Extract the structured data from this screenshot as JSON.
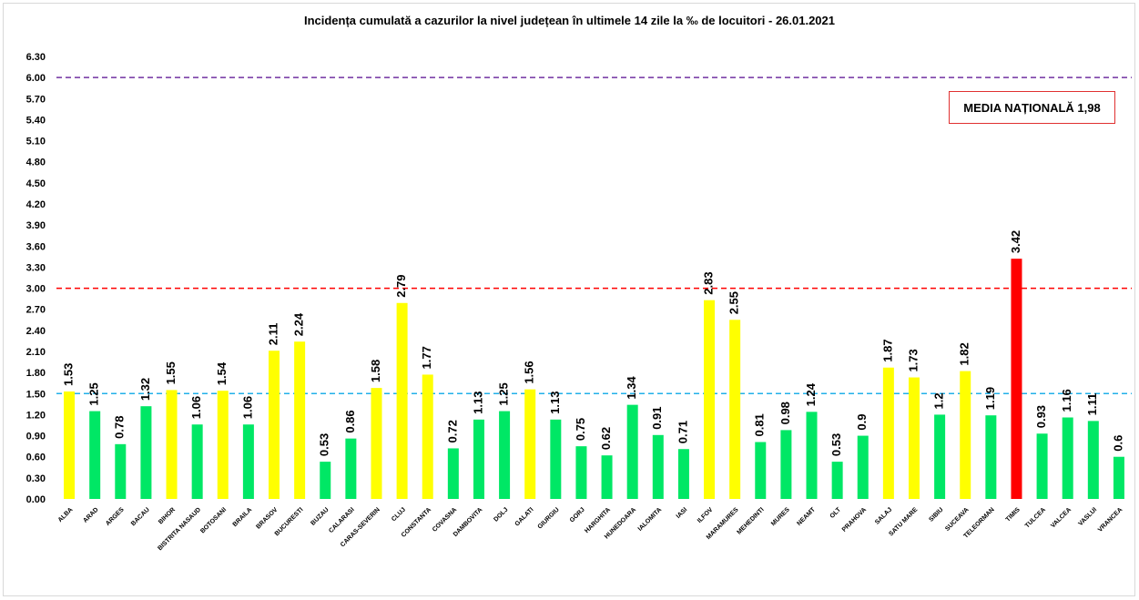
{
  "chart_data": {
    "type": "bar",
    "title": "Incidența cumulată a cazurilor la nivel județean în ultimele 14 zile la ‰ de locuitori - 26.01.2021",
    "annotation": "MEDIA NAȚIONALĂ 1,98",
    "categories": [
      "ALBA",
      "ARAD",
      "ARGES",
      "BACAU",
      "BIHOR",
      "BISTRITA NASAUD",
      "BOTOSANI",
      "BRAILA",
      "BRASOV",
      "BUCURESTI",
      "BUZAU",
      "CALARASI",
      "CARAS-SEVERIN",
      "CLUJ",
      "CONSTANTA",
      "COVASNA",
      "DAMBOVITA",
      "DOLJ",
      "GALATI",
      "GIURGIU",
      "GORJ",
      "HARGHITA",
      "HUNEDOARA",
      "IALOMITA",
      "IASI",
      "ILFOV",
      "MARAMURES",
      "MEHEDINTI",
      "MURES",
      "NEAMT",
      "OLT",
      "PRAHOVA",
      "SALAJ",
      "SATU MARE",
      "SIBIU",
      "SUCEAVA",
      "TELEORMAN",
      "TIMIS",
      "TULCEA",
      "VALCEA",
      "VASLUI",
      "VRANCEA"
    ],
    "values": [
      1.53,
      1.25,
      0.78,
      1.32,
      1.55,
      1.06,
      1.54,
      1.06,
      2.11,
      2.24,
      0.53,
      0.86,
      1.58,
      2.79,
      1.77,
      0.72,
      1.13,
      1.25,
      1.56,
      1.13,
      0.75,
      0.62,
      1.34,
      0.91,
      0.71,
      2.83,
      2.55,
      0.81,
      0.98,
      1.24,
      0.53,
      0.9,
      1.87,
      1.73,
      1.2,
      1.82,
      1.19,
      3.42,
      0.93,
      1.16,
      1.11,
      0.6
    ],
    "value_labels": [
      "1.53",
      "1.25",
      "0.78",
      "1.32",
      "1.55",
      "1.06",
      "1.54",
      "1.06",
      "2.11",
      "2.24",
      "0.53",
      "0.86",
      "1.58",
      "2.79",
      "1.77",
      "0.72",
      "1.13",
      "1.25",
      "1.56",
      "1.13",
      "0.75",
      "0.62",
      "1.34",
      "0.91",
      "0.71",
      "2.83",
      "2.55",
      "0.81",
      "0.98",
      "1.24",
      "0.53",
      "0.9",
      "1.87",
      "1.73",
      "1.2",
      "1.82",
      "1.19",
      "3.42",
      "0.93",
      "1.16",
      "1.11",
      "0.6"
    ],
    "bar_color_rule": {
      "green_below": 1.5,
      "yellow_below": 3.0
    },
    "colors": {
      "green": "#00e765",
      "yellow": "#ffff00",
      "red": "#ff0000",
      "line_1_5": "#22b0e8",
      "line_3": "#ff0000",
      "line_6": "#7030a0",
      "annotation_border": "#e03030"
    },
    "reference_lines": [
      1.5,
      3.0,
      6.0
    ],
    "ylim": [
      0,
      6.3
    ],
    "yticks": [
      "0.00",
      "0.30",
      "0.60",
      "0.90",
      "1.20",
      "1.50",
      "1.80",
      "2.10",
      "2.40",
      "2.70",
      "3.00",
      "3.30",
      "3.60",
      "3.90",
      "4.20",
      "4.50",
      "4.80",
      "5.10",
      "5.40",
      "5.70",
      "6.00",
      "6.30"
    ],
    "grid": false,
    "xlabel": "",
    "ylabel": ""
  }
}
